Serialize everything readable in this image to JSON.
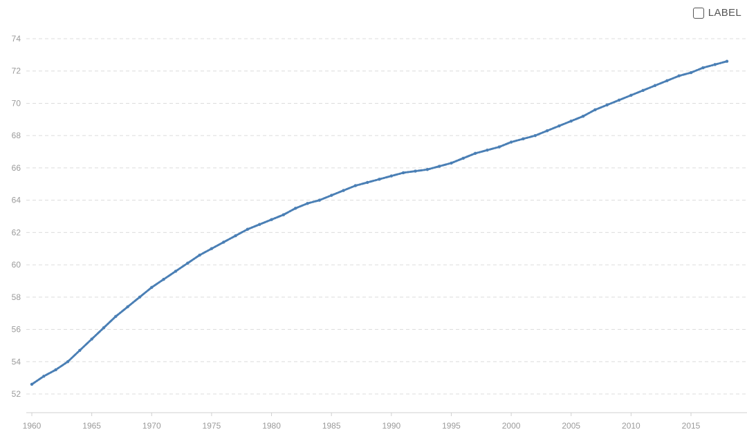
{
  "controls": {
    "label_toggle": {
      "text": "LABEL",
      "checked": false
    }
  },
  "colors": {
    "series": "#4a7fb5",
    "grid": "#dcdcdc",
    "tick_text": "#9a9a9a"
  },
  "chart_data": {
    "type": "line",
    "title": "",
    "xlabel": "",
    "ylabel": "",
    "grid": true,
    "grid_axis": "y",
    "legend": "none",
    "xlim": [
      1960,
      2018
    ],
    "ylim": [
      52,
      74
    ],
    "x_ticks": [
      1960,
      1965,
      1970,
      1975,
      1980,
      1985,
      1990,
      1995,
      2000,
      2005,
      2010,
      2015
    ],
    "y_ticks": [
      52,
      54,
      56,
      58,
      60,
      62,
      64,
      66,
      68,
      70,
      72,
      74
    ],
    "series": [
      {
        "color": "#4a7fb5",
        "x": [
          1960,
          1961,
          1962,
          1963,
          1964,
          1965,
          1966,
          1967,
          1968,
          1969,
          1970,
          1971,
          1972,
          1973,
          1974,
          1975,
          1976,
          1977,
          1978,
          1979,
          1980,
          1981,
          1982,
          1983,
          1984,
          1985,
          1986,
          1987,
          1988,
          1989,
          1990,
          1991,
          1992,
          1993,
          1994,
          1995,
          1996,
          1997,
          1998,
          1999,
          2000,
          2001,
          2002,
          2003,
          2004,
          2005,
          2006,
          2007,
          2008,
          2009,
          2010,
          2011,
          2012,
          2013,
          2014,
          2015,
          2016,
          2017,
          2018
        ],
        "y": [
          52.6,
          53.1,
          53.5,
          54.0,
          54.7,
          55.4,
          56.1,
          56.8,
          57.4,
          58.0,
          58.6,
          59.1,
          59.6,
          60.1,
          60.6,
          61.0,
          61.4,
          61.8,
          62.2,
          62.5,
          62.8,
          63.1,
          63.5,
          63.8,
          64.0,
          64.3,
          64.6,
          64.9,
          65.1,
          65.3,
          65.5,
          65.7,
          65.8,
          65.9,
          66.1,
          66.3,
          66.6,
          66.9,
          67.1,
          67.3,
          67.6,
          67.8,
          68.0,
          68.3,
          68.6,
          68.9,
          69.2,
          69.6,
          69.9,
          70.2,
          70.5,
          70.8,
          71.1,
          71.4,
          71.7,
          71.9,
          72.2,
          72.4,
          72.6
        ]
      }
    ]
  }
}
